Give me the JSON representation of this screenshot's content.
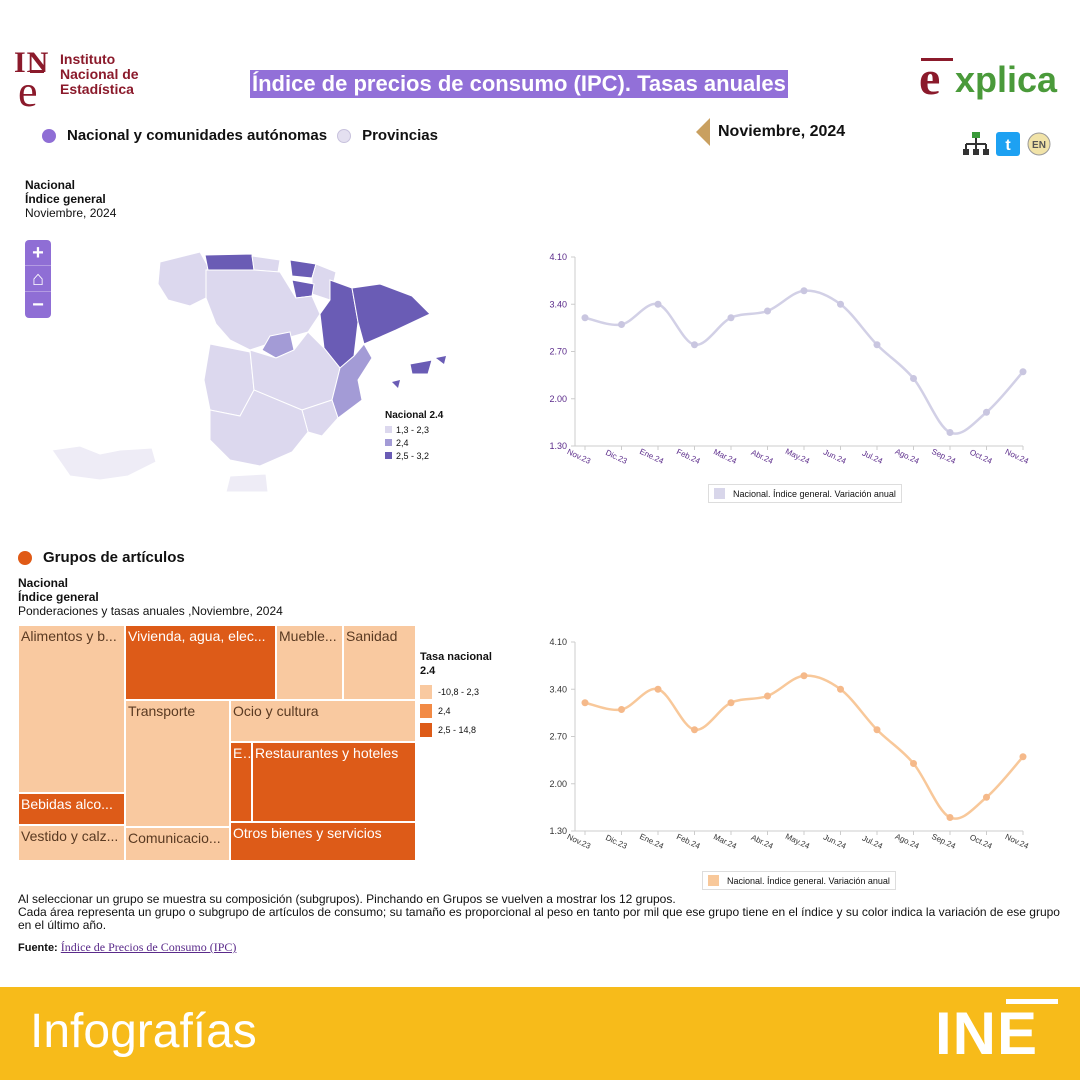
{
  "header": {
    "ine_logo_letters": "INE",
    "ine_name_lines": [
      "Instituto",
      "Nacional de",
      "Estadística"
    ],
    "title": "Índice de precios de consumo (IPC). Tasas anuales",
    "explica_logo": "explica"
  },
  "modes": {
    "national": "Nacional y comunidades autónomas",
    "provinces": "Provincias"
  },
  "period": "Noviembre, 2024",
  "icons": [
    "sitemap-icon",
    "twitter-icon",
    "english-icon"
  ],
  "section1": {
    "line1": "Nacional",
    "line2": "Índice general",
    "line3": "Noviembre, 2024",
    "zoom": {
      "in": "+",
      "home": "⌂",
      "out": "−"
    },
    "map_legend": {
      "title": "Nacional 2.4",
      "items": [
        {
          "label": "1,3 - 2,3",
          "color": "#dcd8ee"
        },
        {
          "label": "2,4",
          "color": "#a39bd6"
        },
        {
          "label": "2,5 - 3,2",
          "color": "#6a5cb5"
        }
      ]
    }
  },
  "chart_data": [
    {
      "type": "line",
      "categories": [
        "Nov.23",
        "Dic.23",
        "Ene.24",
        "Feb.24",
        "Mar.24",
        "Abr.24",
        "May.24",
        "Jun.24",
        "Jul.24",
        "Ago.24",
        "Sep.24",
        "Oct.24",
        "Nov.24"
      ],
      "series": [
        {
          "name": "Nacional. Índice general. Variación anual",
          "values": [
            3.2,
            3.1,
            3.4,
            2.8,
            3.2,
            3.3,
            3.6,
            3.4,
            2.8,
            2.3,
            1.5,
            1.8,
            2.4
          ],
          "color": "#d2d0e6"
        }
      ],
      "yticks": [
        "4.10",
        "3.40",
        "2.70",
        "2.00",
        "1.30"
      ],
      "ylim": [
        1.3,
        4.1
      ],
      "tick_color": "#5a2a8a"
    },
    {
      "type": "line",
      "categories": [
        "Nov.23",
        "Dic.23",
        "Ene.24",
        "Feb.24",
        "Mar.24",
        "Abr.24",
        "May.24",
        "Jun.24",
        "Jul.24",
        "Ago.24",
        "Sep.24",
        "Oct.24",
        "Nov.24"
      ],
      "series": [
        {
          "name": "Nacional. Índice general. Variación anual",
          "values": [
            3.2,
            3.1,
            3.4,
            2.8,
            3.2,
            3.3,
            3.6,
            3.4,
            2.8,
            2.3,
            1.5,
            1.8,
            2.4
          ],
          "color": "#f8c89a"
        }
      ],
      "yticks": [
        "4.10",
        "3.40",
        "2.70",
        "2.00",
        "1.30"
      ],
      "ylim": [
        1.3,
        4.1
      ],
      "tick_color": "#333333"
    }
  ],
  "section2": {
    "heading": "Grupos de artículos",
    "line1": "Nacional",
    "line2": "Índice general",
    "line3": "Ponderaciones y tasas anuales ,Noviembre, 2024",
    "treemap": [
      {
        "label": "Alimentos y b...",
        "tone": "light"
      },
      {
        "label": "Vivienda, agua, elec...",
        "tone": "dark"
      },
      {
        "label": "Mueble...",
        "tone": "light"
      },
      {
        "label": "Sanidad",
        "tone": "light"
      },
      {
        "label": "Transporte",
        "tone": "light"
      },
      {
        "label": "Ocio y cultura",
        "tone": "light"
      },
      {
        "label": "E...",
        "tone": "dark"
      },
      {
        "label": "Restaurantes y hoteles",
        "tone": "dark"
      },
      {
        "label": "Bebidas alco...",
        "tone": "dark"
      },
      {
        "label": "Vestido y calz...",
        "tone": "light"
      },
      {
        "label": "Comunicacio...",
        "tone": "light"
      },
      {
        "label": "Otros bienes y servicios",
        "tone": "dark"
      }
    ],
    "legend": {
      "title_line1": "Tasa nacional",
      "title_line2": "2.4",
      "items": [
        {
          "label": "-10,8 - 2,3",
          "color": "#f9c9a0"
        },
        {
          "label": "2,4",
          "color": "#f28a45"
        },
        {
          "label": "2,5 - 14,8",
          "color": "#dd5b18"
        }
      ]
    }
  },
  "notes": {
    "line1": "Al seleccionar un grupo se muestra su composición (subgrupos). Pinchando en Grupos se vuelven a mostrar los 12 grupos.",
    "line2": "Cada área representa un grupo o subgrupo de artículos de consumo; su tamaño es proporcional al peso en tanto por mil que ese grupo tiene en el índice y su color indica la variación de ese grupo en el último año."
  },
  "source": {
    "label": "Fuente:",
    "link": "Índice de Precios de Consumo (IPC)"
  },
  "footer": {
    "label": "Infografías",
    "brand": "INE"
  }
}
